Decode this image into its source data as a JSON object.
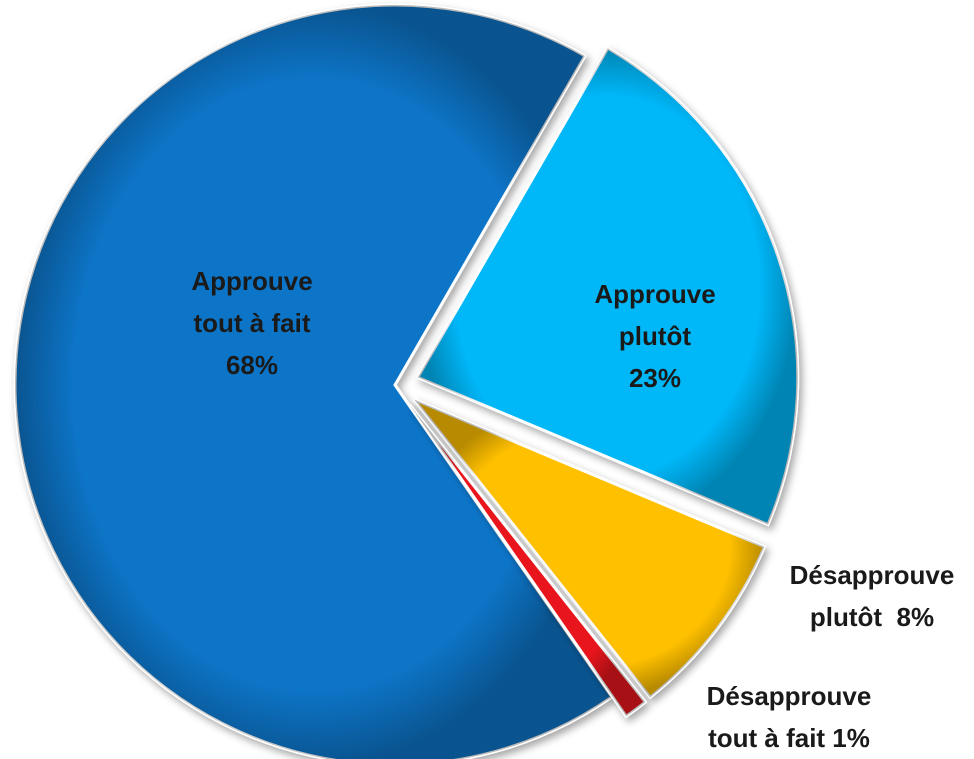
{
  "chart_data": {
    "type": "pie",
    "title": "",
    "slices": [
      {
        "label_lines": [
          "Approuve",
          "tout à fait",
          "68%"
        ],
        "value": 68,
        "color": "#0B74C8"
      },
      {
        "label_lines": [
          "Approuve",
          "plutôt",
          "23%"
        ],
        "value": 23,
        "color": "#00B7F8"
      },
      {
        "label_lines": [
          "Désapprouve",
          "plutôt  8%"
        ],
        "value": 8,
        "color": "#FFC000"
      },
      {
        "label_lines": [
          "Désapprouve",
          "tout à fait 1%"
        ],
        "value": 1,
        "color": "#E8141A"
      }
    ],
    "legend": "none",
    "exploded": true
  }
}
